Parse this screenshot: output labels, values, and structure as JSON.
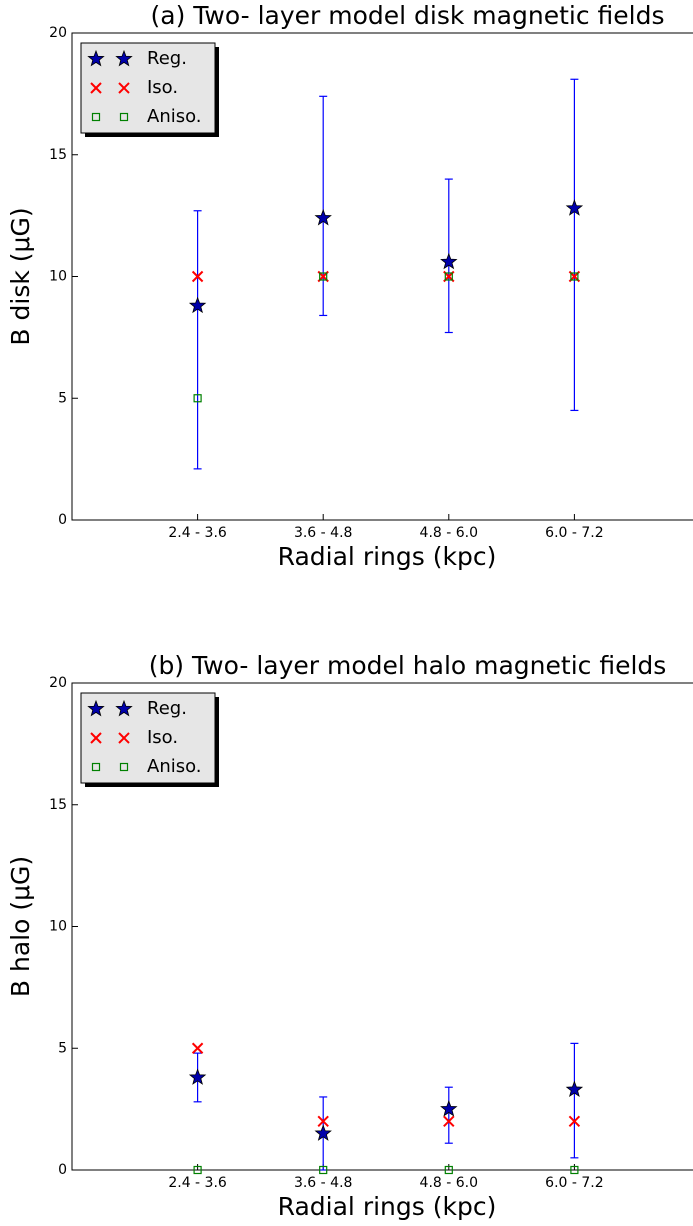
{
  "chart_data": [
    {
      "type": "errorbar",
      "title": "(a) Two- layer model disk magnetic fields",
      "xlabel": "Radial rings (kpc)",
      "ylabel": "B disk (μG)",
      "categories": [
        "2.4 - 3.6",
        "3.6 - 4.8",
        "4.8 - 6.0",
        "6.0 - 7.2"
      ],
      "ylim": [
        0,
        20
      ],
      "yticks": [
        0,
        5,
        10,
        15,
        20
      ],
      "legend": "upper left",
      "error_color": "#0000ff",
      "series": [
        {
          "name": "Reg.",
          "marker": "star",
          "color": "#0000aa",
          "values": [
            8.8,
            12.4,
            10.6,
            12.8
          ],
          "err_minus": [
            6.7,
            4.0,
            2.9,
            8.3
          ],
          "err_plus": [
            3.9,
            5.0,
            3.4,
            5.3
          ]
        },
        {
          "name": "Iso.",
          "marker": "x",
          "color": "#ff0000",
          "values": [
            10,
            10,
            10,
            10
          ]
        },
        {
          "name": "Aniso.",
          "marker": "square",
          "color": "#008000",
          "values": [
            5,
            10,
            10,
            10
          ]
        }
      ]
    },
    {
      "type": "errorbar",
      "title": "(b) Two- layer model halo magnetic fields",
      "xlabel": "Radial rings (kpc)",
      "ylabel": "B halo (μG)",
      "categories": [
        "2.4 - 3.6",
        "3.6 - 4.8",
        "4.8 - 6.0",
        "6.0 - 7.2"
      ],
      "ylim": [
        0,
        20
      ],
      "yticks": [
        0,
        5,
        10,
        15,
        20
      ],
      "legend": "upper left",
      "error_color": "#0000ff",
      "series": [
        {
          "name": "Reg.",
          "marker": "star",
          "color": "#0000aa",
          "values": [
            3.8,
            1.5,
            2.5,
            3.3
          ],
          "err_minus": [
            1.0,
            1.5,
            1.4,
            2.8
          ],
          "err_plus": [
            1.0,
            1.5,
            0.9,
            1.9
          ]
        },
        {
          "name": "Iso.",
          "marker": "x",
          "color": "#ff0000",
          "values": [
            5,
            2,
            2,
            2
          ]
        },
        {
          "name": "Aniso.",
          "marker": "square",
          "color": "#008000",
          "values": [
            0,
            0,
            0,
            0
          ]
        }
      ]
    }
  ]
}
